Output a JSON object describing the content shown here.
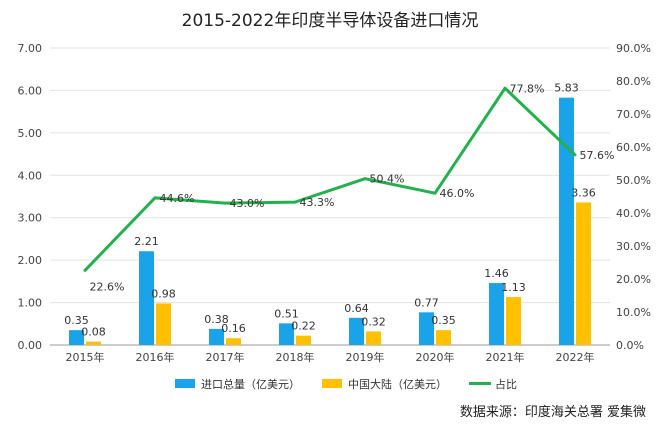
{
  "chart_data": {
    "type": "bar+line",
    "title": "2015-2022年印度半导体设备进口情况",
    "categories": [
      "2015年",
      "2016年",
      "2017年",
      "2018年",
      "2019年",
      "2020年",
      "2021年",
      "2022年"
    ],
    "series": [
      {
        "name": "进口总量（亿美元）",
        "type": "bar",
        "axis": "left",
        "color": "#1aa3e8",
        "values": [
          0.35,
          2.21,
          0.38,
          0.51,
          0.64,
          0.77,
          1.46,
          5.83
        ],
        "labels": [
          "0.35",
          "2.21",
          "0.38",
          "0.51",
          "0.64",
          "0.77",
          "1.46",
          "5.83"
        ]
      },
      {
        "name": "中国大陆（亿美元）",
        "type": "bar",
        "axis": "left",
        "color": "#ffc000",
        "values": [
          0.08,
          0.98,
          0.16,
          0.22,
          0.32,
          0.35,
          1.13,
          3.36
        ],
        "labels": [
          "0.08",
          "0.98",
          "0.16",
          "0.22",
          "0.32",
          "0.35",
          "1.13",
          "3.36"
        ]
      },
      {
        "name": "占比",
        "type": "line",
        "axis": "right",
        "color": "#22b14c",
        "values": [
          22.6,
          44.6,
          43.0,
          43.3,
          50.4,
          46.0,
          77.8,
          57.6
        ],
        "labels": [
          "22.6%",
          "44.6%",
          "43.0%",
          "43.3%",
          "50.4%",
          "46.0%",
          "77.8%",
          "57.6%"
        ]
      }
    ],
    "y_left": {
      "min": 0,
      "max": 7,
      "ticks": [
        "0.00",
        "1.00",
        "2.00",
        "3.00",
        "4.00",
        "5.00",
        "6.00",
        "7.00"
      ]
    },
    "y_right": {
      "min": 0,
      "max": 90,
      "ticks": [
        "0.0%",
        "10.0%",
        "20.0%",
        "30.0%",
        "40.0%",
        "50.0%",
        "60.0%",
        "70.0%",
        "80.0%",
        "90.0%"
      ]
    },
    "grid": true,
    "legend_position": "bottom",
    "source": "数据来源：印度海关总署 爱集微"
  }
}
